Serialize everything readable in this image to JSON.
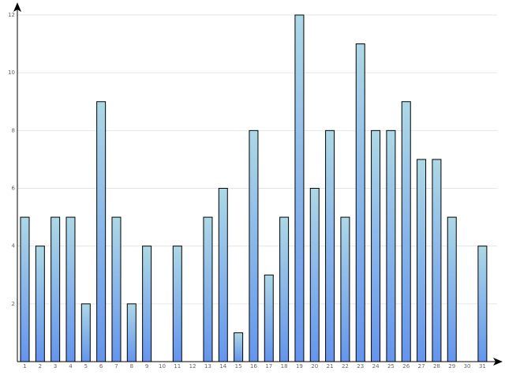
{
  "chart_data": {
    "type": "bar",
    "title": "",
    "xlabel": "",
    "ylabel": "",
    "categories": [
      "1",
      "2",
      "3",
      "4",
      "5",
      "6",
      "7",
      "8",
      "9",
      "10",
      "11",
      "12",
      "13",
      "14",
      "15",
      "16",
      "17",
      "18",
      "19",
      "20",
      "21",
      "22",
      "23",
      "24",
      "25",
      "26",
      "27",
      "28",
      "29",
      "30",
      "31"
    ],
    "values": [
      5,
      4,
      5,
      5,
      2,
      9,
      5,
      2,
      4,
      0,
      4,
      0,
      5,
      6,
      1,
      8,
      3,
      5,
      12,
      6,
      8,
      5,
      11,
      8,
      8,
      9,
      7,
      7,
      5,
      0,
      4
    ],
    "ylim": [
      0,
      12
    ],
    "yticks": [
      "2",
      "4",
      "6",
      "8",
      "10",
      "12"
    ],
    "grid": true,
    "legend": "none",
    "colors": {
      "bar_top": "#add8e6",
      "bar_bottom": "#6495ed",
      "stroke": "#000000",
      "grid": "#e6e6e6"
    }
  }
}
